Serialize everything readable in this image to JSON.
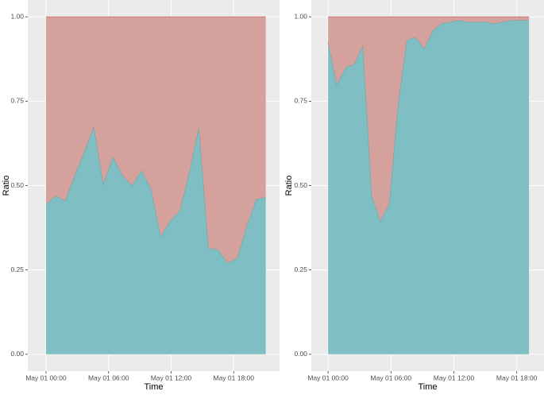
{
  "chart_data": [
    {
      "type": "area",
      "xlabel": "Time",
      "ylabel": "Ratio",
      "x": [
        0,
        0.92,
        1.83,
        2.75,
        3.67,
        4.58,
        5.5,
        6.42,
        7.33,
        8.25,
        9.17,
        10.08,
        11,
        11.92,
        12.83,
        13.75,
        14.67,
        15.58,
        16.5,
        17.42,
        18.33,
        19.25,
        20.17,
        21.08
      ],
      "series": [
        {
          "color": "#7fbfc3",
          "values": [
            0.445,
            0.47,
            0.455,
            0.53,
            0.6,
            0.675,
            0.505,
            0.585,
            0.53,
            0.5,
            0.545,
            0.49,
            0.35,
            0.395,
            0.425,
            0.54,
            0.675,
            0.315,
            0.31,
            0.27,
            0.285,
            0.38,
            0.46,
            0.465
          ]
        },
        {
          "color": "#d4a19c",
          "values": [
            0.555,
            0.53,
            0.545,
            0.47,
            0.4,
            0.325,
            0.495,
            0.415,
            0.47,
            0.5,
            0.455,
            0.51,
            0.65,
            0.605,
            0.575,
            0.46,
            0.325,
            0.685,
            0.69,
            0.73,
            0.715,
            0.62,
            0.54,
            0.535
          ]
        }
      ],
      "xlim": [
        -1.75,
        22.4
      ],
      "xticks": [
        {
          "value": 0,
          "label": "May 01 00:00"
        },
        {
          "value": 6,
          "label": "May 01 06:00"
        },
        {
          "value": 12,
          "label": "May 01 12:00"
        },
        {
          "value": 18,
          "label": "May 01 18:00"
        }
      ],
      "ylim": [
        -0.05,
        1.05
      ],
      "yticks": [
        {
          "value": 0,
          "label": "0.00"
        },
        {
          "value": 0.25,
          "label": "0.25"
        },
        {
          "value": 0.5,
          "label": "0.50"
        },
        {
          "value": 0.75,
          "label": "0.75"
        },
        {
          "value": 1,
          "label": "1.00"
        }
      ],
      "grid": true
    },
    {
      "type": "area",
      "xlabel": "Time",
      "ylabel": "Ratio",
      "x": [
        0,
        0.83,
        1.67,
        2.5,
        3.33,
        4.17,
        5,
        5.83,
        6.67,
        7.5,
        8.33,
        9.17,
        10,
        10.83,
        11.67,
        12.5,
        13.33,
        14.17,
        15,
        15.83,
        16.67,
        17.5,
        18.33,
        19.17
      ],
      "series": [
        {
          "color": "#7fbfc3",
          "values": [
            0.925,
            0.8,
            0.85,
            0.86,
            0.915,
            0.47,
            0.395,
            0.445,
            0.74,
            0.93,
            0.94,
            0.905,
            0.96,
            0.98,
            0.985,
            0.99,
            0.985,
            0.985,
            0.985,
            0.98,
            0.985,
            0.99,
            0.99,
            0.99
          ]
        },
        {
          "color": "#d4a19c",
          "values": [
            0.075,
            0.2,
            0.15,
            0.14,
            0.085,
            0.53,
            0.605,
            0.555,
            0.26,
            0.07,
            0.06,
            0.095,
            0.04,
            0.02,
            0.015,
            0.01,
            0.015,
            0.015,
            0.015,
            0.02,
            0.015,
            0.01,
            0.01,
            0.01
          ]
        }
      ],
      "xlim": [
        -1.6,
        20.6
      ],
      "xticks": [
        {
          "value": 0,
          "label": "May 01 00:00"
        },
        {
          "value": 6,
          "label": "May 01 06:00"
        },
        {
          "value": 12,
          "label": "May 01 12:00"
        },
        {
          "value": 18,
          "label": "May 01 18:00"
        }
      ],
      "ylim": [
        -0.05,
        1.05
      ],
      "yticks": [
        {
          "value": 0,
          "label": "0.00"
        },
        {
          "value": 0.25,
          "label": "0.25"
        },
        {
          "value": 0.5,
          "label": "0.50"
        },
        {
          "value": 0.75,
          "label": "0.75"
        },
        {
          "value": 1,
          "label": "1.00"
        }
      ],
      "grid": true
    }
  ]
}
